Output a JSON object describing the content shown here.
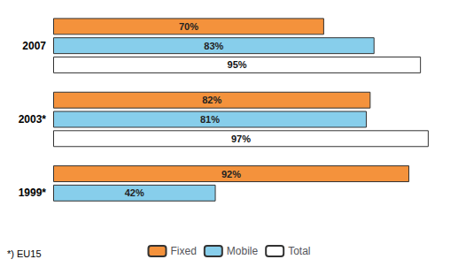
{
  "chart_data": {
    "type": "bar",
    "orientation": "horizontal",
    "categories": [
      "2007",
      "2003*",
      "1999*"
    ],
    "series": [
      {
        "name": "Fixed",
        "color": "#F4923C",
        "values": [
          70,
          82,
          92
        ],
        "value_labels": [
          "70%",
          "82%",
          "92%"
        ]
      },
      {
        "name": "Mobile",
        "color": "#87CEEB",
        "values": [
          83,
          81,
          42
        ],
        "value_labels": [
          "83%",
          "81%",
          "42%"
        ]
      },
      {
        "name": "Total",
        "color": "#FFFFFF",
        "values": [
          95,
          97,
          null
        ],
        "value_labels": [
          "95%",
          "97%",
          null
        ]
      }
    ],
    "xlim": [
      0,
      100
    ],
    "data_labels": true,
    "tick_labels": "y",
    "grid": false,
    "legend": "bottom",
    "annotations": [
      "*) EU15"
    ]
  }
}
